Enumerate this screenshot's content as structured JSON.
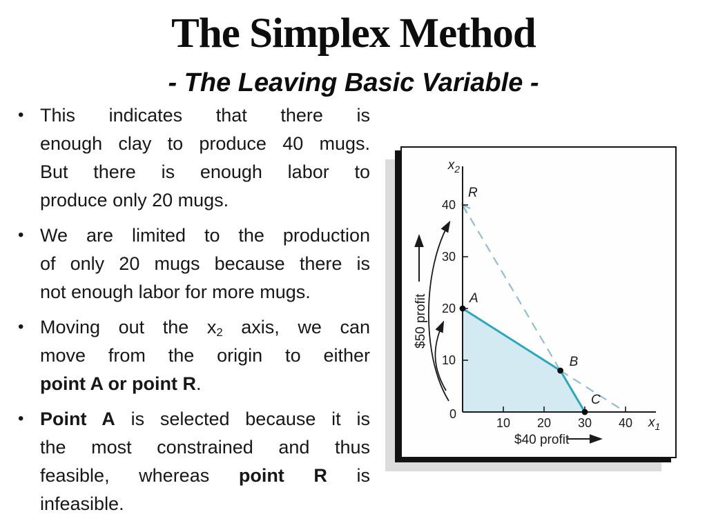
{
  "slide": {
    "title": "The Simplex Method",
    "subtitle": "- The Leaving Basic Variable -",
    "bullet_marker": "•",
    "bullets": [
      {
        "lines": [
          [
            {
              "t": "This indicates that there is"
            }
          ],
          [
            {
              "t": "enough clay to produce 40 mugs."
            }
          ],
          [
            {
              "t": "But there is enough labor to"
            }
          ],
          [
            {
              "t": "produce only 20 mugs."
            }
          ]
        ]
      },
      {
        "lines": [
          [
            {
              "t": "We are limited to the production"
            }
          ],
          [
            {
              "t": "of only 20 mugs because there is"
            }
          ],
          [
            {
              "t": "not enough labor for more mugs."
            }
          ]
        ]
      },
      {
        "lines": [
          [
            {
              "t": "Moving out the x"
            },
            {
              "t": "2",
              "sub": true
            },
            {
              "t": " axis, we can"
            }
          ],
          [
            {
              "t": "move from the origin to either"
            }
          ],
          [
            {
              "t": "point A or point R",
              "b": true
            },
            {
              "t": "."
            }
          ]
        ]
      },
      {
        "lines": [
          [
            {
              "t": "Point A",
              "b": true
            },
            {
              "t": " is selected because it is"
            }
          ],
          [
            {
              "t": "the most constrained and thus"
            }
          ],
          [
            {
              "t": "feasible, whereas "
            },
            {
              "t": "point R",
              "b": true
            },
            {
              "t": " is"
            }
          ],
          [
            {
              "t": "infeasible."
            }
          ]
        ]
      }
    ]
  },
  "chart_data": {
    "type": "line",
    "title": "",
    "xlabel": {
      "base": "x",
      "sub": "1"
    },
    "ylabel": {
      "base": "x",
      "sub": "2"
    },
    "xlim": [
      0,
      45
    ],
    "ylim": [
      0,
      45
    ],
    "x_ticks": [
      10,
      20,
      30,
      40
    ],
    "y_ticks": [
      0,
      10,
      20,
      30,
      40
    ],
    "grid": false,
    "points": [
      {
        "name": "R",
        "x": 0,
        "y": 40,
        "dot": false
      },
      {
        "name": "A",
        "x": 0,
        "y": 20,
        "dot": true
      },
      {
        "name": "B",
        "x": 24,
        "y": 8,
        "dot": true
      },
      {
        "name": "C",
        "x": 30,
        "y": 0,
        "dot": true
      }
    ],
    "feasible_region": [
      [
        0,
        0
      ],
      [
        0,
        20
      ],
      [
        24,
        8
      ],
      [
        30,
        0
      ]
    ],
    "solid_boundary": [
      [
        0,
        20
      ],
      [
        24,
        8
      ],
      [
        30,
        0
      ]
    ],
    "dashed_segments": [
      [
        [
          0,
          40
        ],
        [
          24,
          8
        ]
      ],
      [
        [
          24,
          8
        ],
        [
          40,
          0
        ]
      ]
    ],
    "annotations": {
      "y_arrow_label": "$50 profit",
      "x_arrow_label": "$40 profit"
    },
    "colors": {
      "solid_line": "#2aa7bd",
      "dashed_line": "#8fc0cd",
      "fill": "#d3eaf2",
      "axis": "#1a1a1a"
    }
  }
}
